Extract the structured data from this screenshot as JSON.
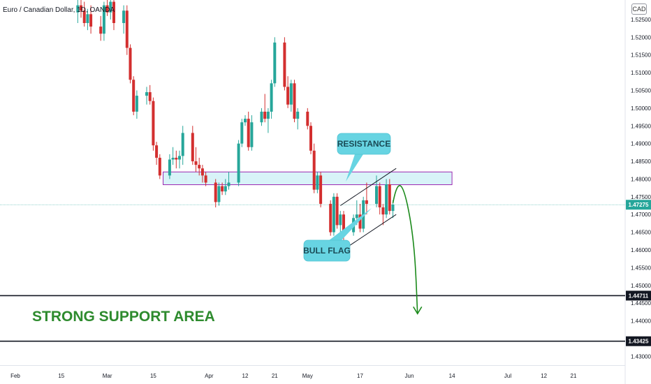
{
  "chart_title": "Euro / Canadian Dollar, 1D, OANDA",
  "currency_badge": "CAD",
  "colors": {
    "up": "#26a69a",
    "down": "#d32f2f",
    "zone_fill": "#d8f3f8",
    "zone_border": "#9c27b0",
    "callout": "#67d4e2",
    "support_text": "#2e8b2e",
    "forecast": "#1b8a1b"
  },
  "chart_data": {
    "type": "candlestick",
    "symbol": "EURCAD",
    "interval": "1D",
    "ylim": [
      1.4275,
      1.5305
    ],
    "y_ticks": [
      "1.43000",
      "1.43500",
      "1.44000",
      "1.44500",
      "1.45000",
      "1.45500",
      "1.46000",
      "1.46500",
      "1.47000",
      "1.47500",
      "1.48000",
      "1.48500",
      "1.49000",
      "1.49500",
      "1.50000",
      "1.50500",
      "1.51000",
      "1.51500",
      "1.52000",
      "1.52500"
    ],
    "x_labels": [
      {
        "label": "Feb",
        "day": 0
      },
      {
        "label": "15",
        "day": 14
      },
      {
        "label": "Mar",
        "day": 28
      },
      {
        "label": "15",
        "day": 42
      },
      {
        "label": "Apr",
        "day": 59
      },
      {
        "label": "12",
        "day": 70
      },
      {
        "label": "21",
        "day": 79
      },
      {
        "label": "May",
        "day": 89
      },
      {
        "label": "17",
        "day": 105
      },
      {
        "label": "Jun",
        "day": 120
      },
      {
        "label": "14",
        "day": 133
      },
      {
        "label": "Jul",
        "day": 150
      },
      {
        "label": "12",
        "day": 161
      },
      {
        "label": "21",
        "day": 170
      }
    ],
    "candles": [
      {
        "d": 19,
        "o": 1.527,
        "h": 1.531,
        "l": 1.524,
        "c": 1.529
      },
      {
        "d": 20,
        "o": 1.529,
        "h": 1.532,
        "l": 1.5255,
        "c": 1.5275
      },
      {
        "d": 21,
        "o": 1.5275,
        "h": 1.53,
        "l": 1.523,
        "c": 1.524
      },
      {
        "d": 22,
        "o": 1.524,
        "h": 1.528,
        "l": 1.522,
        "c": 1.5265
      },
      {
        "d": 23,
        "o": 1.5265,
        "h": 1.529,
        "l": 1.521,
        "c": 1.523
      },
      {
        "d": 26,
        "o": 1.523,
        "h": 1.526,
        "l": 1.519,
        "c": 1.521
      },
      {
        "d": 27,
        "o": 1.521,
        "h": 1.53,
        "l": 1.519,
        "c": 1.529
      },
      {
        "d": 28,
        "o": 1.529,
        "h": 1.531,
        "l": 1.526,
        "c": 1.527
      },
      {
        "d": 29,
        "o": 1.527,
        "h": 1.531,
        "l": 1.525,
        "c": 1.53
      },
      {
        "d": 30,
        "o": 1.53,
        "h": 1.531,
        "l": 1.522,
        "c": 1.524
      },
      {
        "d": 33,
        "o": 1.524,
        "h": 1.529,
        "l": 1.521,
        "c": 1.5275
      },
      {
        "d": 34,
        "o": 1.5275,
        "h": 1.529,
        "l": 1.515,
        "c": 1.517
      },
      {
        "d": 35,
        "o": 1.517,
        "h": 1.518,
        "l": 1.507,
        "c": 1.508
      },
      {
        "d": 36,
        "o": 1.508,
        "h": 1.509,
        "l": 1.498,
        "c": 1.499
      },
      {
        "d": 37,
        "o": 1.499,
        "h": 1.505,
        "l": 1.497,
        "c": 1.5035
      },
      {
        "d": 40,
        "o": 1.5035,
        "h": 1.506,
        "l": 1.501,
        "c": 1.5045
      },
      {
        "d": 41,
        "o": 1.5045,
        "h": 1.5065,
        "l": 1.501,
        "c": 1.502
      },
      {
        "d": 42,
        "o": 1.502,
        "h": 1.503,
        "l": 1.488,
        "c": 1.4895
      },
      {
        "d": 43,
        "o": 1.4895,
        "h": 1.4905,
        "l": 1.484,
        "c": 1.486
      },
      {
        "d": 44,
        "o": 1.486,
        "h": 1.487,
        "l": 1.48,
        "c": 1.481
      },
      {
        "d": 47,
        "o": 1.481,
        "h": 1.487,
        "l": 1.48,
        "c": 1.4855
      },
      {
        "d": 48,
        "o": 1.4855,
        "h": 1.489,
        "l": 1.484,
        "c": 1.486
      },
      {
        "d": 49,
        "o": 1.486,
        "h": 1.488,
        "l": 1.483,
        "c": 1.4855
      },
      {
        "d": 50,
        "o": 1.4855,
        "h": 1.488,
        "l": 1.483,
        "c": 1.4865
      },
      {
        "d": 51,
        "o": 1.4865,
        "h": 1.495,
        "l": 1.484,
        "c": 1.493
      },
      {
        "d": 54,
        "o": 1.493,
        "h": 1.495,
        "l": 1.484,
        "c": 1.485
      },
      {
        "d": 55,
        "o": 1.485,
        "h": 1.489,
        "l": 1.482,
        "c": 1.484
      },
      {
        "d": 56,
        "o": 1.484,
        "h": 1.486,
        "l": 1.481,
        "c": 1.483
      },
      {
        "d": 57,
        "o": 1.483,
        "h": 1.484,
        "l": 1.479,
        "c": 1.481
      },
      {
        "d": 58,
        "o": 1.481,
        "h": 1.482,
        "l": 1.478,
        "c": 1.479
      },
      {
        "d": 61,
        "o": 1.479,
        "h": 1.48,
        "l": 1.472,
        "c": 1.4735
      },
      {
        "d": 62,
        "o": 1.4735,
        "h": 1.479,
        "l": 1.4725,
        "c": 1.478
      },
      {
        "d": 63,
        "o": 1.478,
        "h": 1.479,
        "l": 1.4755,
        "c": 1.4765
      },
      {
        "d": 64,
        "o": 1.4765,
        "h": 1.48,
        "l": 1.4755,
        "c": 1.478
      },
      {
        "d": 65,
        "o": 1.478,
        "h": 1.482,
        "l": 1.477,
        "c": 1.479
      },
      {
        "d": 68,
        "o": 1.479,
        "h": 1.491,
        "l": 1.478,
        "c": 1.49
      },
      {
        "d": 69,
        "o": 1.49,
        "h": 1.497,
        "l": 1.489,
        "c": 1.496
      },
      {
        "d": 70,
        "o": 1.496,
        "h": 1.498,
        "l": 1.495,
        "c": 1.497
      },
      {
        "d": 71,
        "o": 1.497,
        "h": 1.499,
        "l": 1.488,
        "c": 1.489
      },
      {
        "d": 72,
        "o": 1.489,
        "h": 1.498,
        "l": 1.488,
        "c": 1.496
      },
      {
        "d": 75,
        "o": 1.496,
        "h": 1.5,
        "l": 1.495,
        "c": 1.499
      },
      {
        "d": 76,
        "o": 1.499,
        "h": 1.504,
        "l": 1.496,
        "c": 1.497
      },
      {
        "d": 77,
        "o": 1.497,
        "h": 1.5,
        "l": 1.493,
        "c": 1.499
      },
      {
        "d": 78,
        "o": 1.499,
        "h": 1.508,
        "l": 1.497,
        "c": 1.507
      },
      {
        "d": 79,
        "o": 1.507,
        "h": 1.52,
        "l": 1.506,
        "c": 1.5185
      },
      {
        "d": 82,
        "o": 1.5185,
        "h": 1.52,
        "l": 1.505,
        "c": 1.506
      },
      {
        "d": 83,
        "o": 1.506,
        "h": 1.509,
        "l": 1.5,
        "c": 1.501
      },
      {
        "d": 84,
        "o": 1.501,
        "h": 1.508,
        "l": 1.499,
        "c": 1.507
      },
      {
        "d": 85,
        "o": 1.507,
        "h": 1.508,
        "l": 1.496,
        "c": 1.497
      },
      {
        "d": 86,
        "o": 1.497,
        "h": 1.5,
        "l": 1.494,
        "c": 1.499
      },
      {
        "d": 89,
        "o": 1.499,
        "h": 1.5,
        "l": 1.494,
        "c": 1.495
      },
      {
        "d": 90,
        "o": 1.495,
        "h": 1.496,
        "l": 1.487,
        "c": 1.488
      },
      {
        "d": 91,
        "o": 1.488,
        "h": 1.49,
        "l": 1.476,
        "c": 1.477
      },
      {
        "d": 92,
        "o": 1.477,
        "h": 1.482,
        "l": 1.476,
        "c": 1.481
      },
      {
        "d": 93,
        "o": 1.481,
        "h": 1.482,
        "l": 1.472,
        "c": 1.473
      },
      {
        "d": 96,
        "o": 1.473,
        "h": 1.474,
        "l": 1.464,
        "c": 1.465
      },
      {
        "d": 97,
        "o": 1.465,
        "h": 1.476,
        "l": 1.464,
        "c": 1.475
      },
      {
        "d": 98,
        "o": 1.475,
        "h": 1.476,
        "l": 1.466,
        "c": 1.467
      },
      {
        "d": 99,
        "o": 1.467,
        "h": 1.471,
        "l": 1.465,
        "c": 1.47
      },
      {
        "d": 100,
        "o": 1.47,
        "h": 1.471,
        "l": 1.458,
        "c": 1.465
      },
      {
        "d": 103,
        "o": 1.465,
        "h": 1.47,
        "l": 1.464,
        "c": 1.469
      },
      {
        "d": 104,
        "o": 1.469,
        "h": 1.474,
        "l": 1.467,
        "c": 1.47
      },
      {
        "d": 105,
        "o": 1.47,
        "h": 1.473,
        "l": 1.465,
        "c": 1.466
      },
      {
        "d": 106,
        "o": 1.466,
        "h": 1.475,
        "l": 1.465,
        "c": 1.474
      },
      {
        "d": 107,
        "o": 1.474,
        "h": 1.479,
        "l": 1.47,
        "c": 1.473
      },
      {
        "d": 110,
        "o": 1.473,
        "h": 1.481,
        "l": 1.472,
        "c": 1.478
      },
      {
        "d": 111,
        "o": 1.478,
        "h": 1.479,
        "l": 1.47,
        "c": 1.472
      },
      {
        "d": 112,
        "o": 1.472,
        "h": 1.473,
        "l": 1.467,
        "c": 1.47
      },
      {
        "d": 113,
        "o": 1.47,
        "h": 1.48,
        "l": 1.469,
        "c": 1.4785
      },
      {
        "d": 114,
        "o": 1.4785,
        "h": 1.48,
        "l": 1.47,
        "c": 1.471
      },
      {
        "d": 115,
        "o": 1.471,
        "h": 1.474,
        "l": 1.469,
        "c": 1.4728
      }
    ],
    "resistance_zone": {
      "from_day": 45,
      "to_day": 133,
      "low": 1.4784,
      "high": 1.482
    },
    "flag_lines": [
      {
        "d1": 99,
        "v1": 1.4725,
        "d2": 116,
        "v2": 1.483
      },
      {
        "d1": 99,
        "v1": 1.4595,
        "d2": 116,
        "v2": 1.47
      }
    ],
    "forecast_path": [
      {
        "d": 115,
        "v": 1.4732
      },
      {
        "d": 116.5,
        "v": 1.4795
      },
      {
        "d": 118,
        "v": 1.479
      },
      {
        "d": 120,
        "v": 1.47
      },
      {
        "d": 122.5,
        "v": 1.442
      }
    ],
    "support_levels": [
      1.44711,
      1.43425
    ],
    "current_price": 1.47275,
    "price_labels": {
      "current": "1.47275",
      "support_upper": "1.44711",
      "support_lower": "1.43425"
    },
    "annotations": {
      "resistance": "RESISTANCE",
      "bull_flag": "BULL FLAG",
      "support": "STRONG SUPPORT AREA"
    }
  }
}
